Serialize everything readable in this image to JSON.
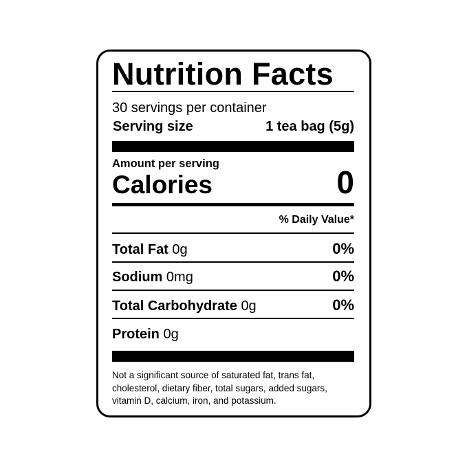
{
  "title": "Nutrition Facts",
  "servings_per_container": "30 servings per container",
  "serving_size": {
    "label": "Serving size",
    "value": "1 tea bag (5g)"
  },
  "amount_per_serving": "Amount per serving",
  "calories": {
    "label": "Calories",
    "value": "0"
  },
  "daily_value_header": "% Daily Value*",
  "nutrients": [
    {
      "name": "Total Fat",
      "amount": "0g",
      "dv": "0%"
    },
    {
      "name": "Sodium",
      "amount": "0mg",
      "dv": "0%"
    },
    {
      "name": "Total Carbohydrate",
      "amount": "0g",
      "dv": "0%"
    },
    {
      "name": "Protein",
      "amount": "0g",
      "dv": ""
    }
  ],
  "footnote": "Not a significant source of saturated fat, trans fat, cholesterol, dietary fiber, total sugars, added sugars, vitamin D, calcium, iron, and potassium."
}
